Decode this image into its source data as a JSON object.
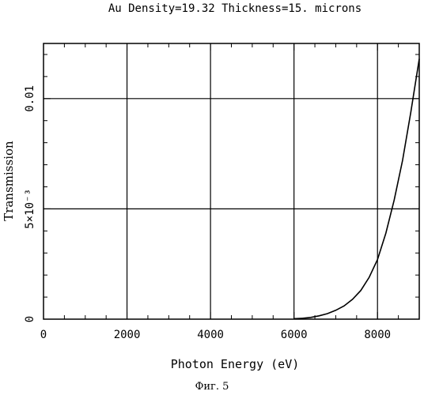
{
  "chart_data": {
    "type": "line",
    "title": "Au Density=19.32 Thickness=15. microns",
    "xlabel": "Photon Energy (eV)",
    "ylabel": "Transmission",
    "xlim": [
      0,
      9000
    ],
    "ylim": [
      0,
      0.0125
    ],
    "grid": true,
    "x_ticks": [
      0,
      2000,
      4000,
      6000,
      8000
    ],
    "x_tick_labels": [
      "0",
      "2000",
      "4000",
      "6000",
      "8000"
    ],
    "y_ticks": [
      0,
      0.005,
      0.01
    ],
    "y_tick_labels": [
      "0",
      "5×10⁻³",
      "0.01"
    ],
    "series": [
      {
        "x": [
          6000,
          6200,
          6400,
          6600,
          6800,
          7000,
          7200,
          7400,
          7600,
          7800,
          8000,
          8200,
          8400,
          8600,
          8800,
          9000
        ],
        "y": [
          2e-05,
          4e-05,
          8e-05,
          0.00015,
          0.00025,
          0.0004,
          0.0006,
          0.0009,
          0.0013,
          0.0019,
          0.0027,
          0.0039,
          0.0054,
          0.0072,
          0.0094,
          0.0118
        ]
      }
    ]
  },
  "figure_caption": "Фиг. 5"
}
